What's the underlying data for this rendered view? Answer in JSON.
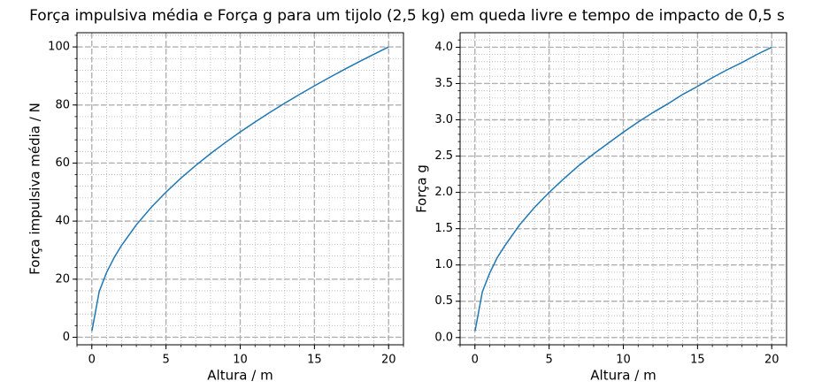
{
  "title": "Força impulsiva média e Força g para um tijolo (2,5 kg) em queda livre e tempo de impacto de 0,5 s",
  "chart_data": [
    {
      "type": "line",
      "x_label": "Altura / m",
      "y_label": "Força impulsiva média / N",
      "x": [
        0.01,
        0.5,
        1,
        1.5,
        2,
        3,
        4,
        5,
        6,
        7,
        8,
        9,
        10,
        11,
        12,
        13,
        14,
        15,
        16,
        17,
        18,
        19,
        20
      ],
      "series": [
        {
          "color": "#1f77b4",
          "values": [
            2.24,
            15.81,
            22.36,
            27.39,
            31.62,
            38.73,
            44.72,
            50.0,
            54.77,
            59.16,
            63.25,
            67.08,
            70.71,
            74.16,
            77.46,
            80.62,
            83.67,
            86.6,
            89.44,
            92.2,
            94.87,
            97.47,
            100
          ]
        }
      ],
      "xlim": [
        -1,
        21
      ],
      "xticks": [
        0,
        5,
        10,
        15,
        20
      ],
      "ylim": [
        -2.6,
        104.9
      ],
      "yticks": [
        0,
        20,
        40,
        60,
        80,
        100
      ],
      "grid": true
    },
    {
      "type": "line",
      "x_label": "Altura / m",
      "y_label": "Força g",
      "x": [
        0.01,
        0.5,
        1,
        1.5,
        2,
        3,
        4,
        5,
        6,
        7,
        8,
        9,
        10,
        11,
        12,
        13,
        14,
        15,
        16,
        17,
        18,
        19,
        20
      ],
      "series": [
        {
          "color": "#1f77b4",
          "values": [
            0.09,
            0.63,
            0.89,
            1.1,
            1.26,
            1.55,
            1.79,
            2.0,
            2.19,
            2.37,
            2.53,
            2.68,
            2.83,
            2.97,
            3.1,
            3.22,
            3.35,
            3.46,
            3.58,
            3.69,
            3.79,
            3.9,
            4.0
          ]
        }
      ],
      "xlim": [
        -1,
        21
      ],
      "xticks": [
        0,
        5,
        10,
        15,
        20
      ],
      "ylim": [
        -0.1,
        4.2
      ],
      "yticks": [
        {
          "value": 0,
          "label": "0.0"
        },
        0.5,
        {
          "value": 1,
          "label": "1.0"
        },
        1.5,
        {
          "value": 2,
          "label": "2.0"
        },
        2.5,
        {
          "value": 3,
          "label": "3.0"
        },
        3.5,
        {
          "value": 4,
          "label": "4.0"
        }
      ],
      "grid": true
    }
  ]
}
